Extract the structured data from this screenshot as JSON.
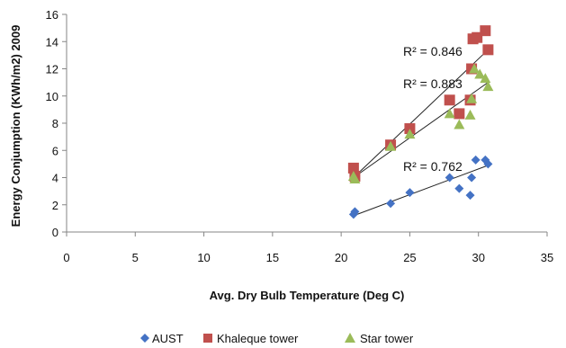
{
  "chart_data": {
    "type": "scatter",
    "title": "",
    "xlabel": "Avg. Dry Bulb Temperature (Deg C)",
    "ylabel": "Energy Conjumption (KWh/m2) 2009",
    "xlim": [
      0,
      35
    ],
    "ylim": [
      0,
      16
    ],
    "x_ticks": [
      "0",
      "5",
      "10",
      "15",
      "20",
      "25",
      "30",
      "35"
    ],
    "y_ticks": [
      "0",
      "2",
      "4",
      "6",
      "8",
      "10",
      "12",
      "14",
      "16"
    ],
    "grid": false,
    "legend_position": "bottom",
    "series": [
      {
        "name": "AUST",
        "marker": "diamond",
        "color": "#4472C4",
        "points": [
          [
            20.9,
            1.3
          ],
          [
            21.0,
            1.5
          ],
          [
            23.6,
            2.1
          ],
          [
            25.0,
            2.9
          ],
          [
            27.9,
            4.0
          ],
          [
            28.6,
            3.2
          ],
          [
            29.4,
            2.7
          ],
          [
            29.5,
            4.0
          ],
          [
            29.8,
            5.3
          ],
          [
            30.5,
            5.3
          ],
          [
            30.7,
            5.0
          ]
        ],
        "trendline": {
          "x": [
            20.9,
            30.7
          ],
          "y": [
            1.2,
            4.9
          ]
        },
        "r2_label": "R² = 0.762"
      },
      {
        "name": "Khaleque tower",
        "marker": "square",
        "color": "#C0504D",
        "points": [
          [
            20.9,
            4.7
          ],
          [
            21.0,
            4.1
          ],
          [
            23.6,
            6.4
          ],
          [
            25.0,
            7.6
          ],
          [
            27.9,
            9.7
          ],
          [
            28.6,
            8.7
          ],
          [
            29.4,
            9.7
          ],
          [
            29.5,
            12.0
          ],
          [
            29.6,
            14.2
          ],
          [
            29.9,
            14.3
          ],
          [
            30.5,
            14.8
          ],
          [
            30.7,
            13.4
          ]
        ],
        "trendline": {
          "x": [
            20.9,
            30.7
          ],
          "y": [
            4.0,
            13.4
          ]
        },
        "r2_label": "R² = 0.846"
      },
      {
        "name": "Star tower",
        "marker": "triangle",
        "color": "#9BBB59",
        "points": [
          [
            20.9,
            4.1
          ],
          [
            21.0,
            3.9
          ],
          [
            23.6,
            6.3
          ],
          [
            25.0,
            7.2
          ],
          [
            27.9,
            8.7
          ],
          [
            28.6,
            7.9
          ],
          [
            29.4,
            8.6
          ],
          [
            29.5,
            9.8
          ],
          [
            29.7,
            12.0
          ],
          [
            30.1,
            11.6
          ],
          [
            30.5,
            11.3
          ],
          [
            30.7,
            10.7
          ]
        ],
        "trendline": {
          "x": [
            20.9,
            30.7
          ],
          "y": [
            4.0,
            11.0
          ]
        },
        "r2_label": "R² = 0.883"
      }
    ]
  }
}
